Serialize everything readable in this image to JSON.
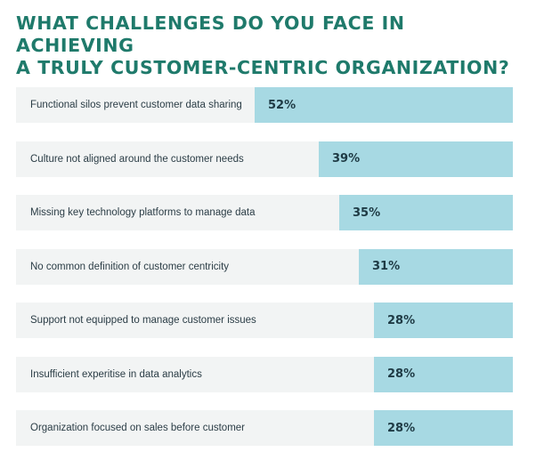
{
  "title_lines": [
    "WHAT CHALLENGES DO YOU FACE IN ACHIEVING",
    "A TRULY CUSTOMER-CENTRIC ORGANIZATION?"
  ],
  "colors": {
    "title": "#1f7a6b",
    "bar": "#a7d9e3",
    "row_background": "#f2f4f4",
    "text": "#2b3d46"
  },
  "chart_data": {
    "type": "bar",
    "orientation": "horizontal",
    "title": "WHAT CHALLENGES DO YOU FACE IN ACHIEVING A TRULY CUSTOMER-CENTRIC ORGANIZATION?",
    "categories": [
      "Functional silos prevent customer data sharing",
      "Culture not aligned around the customer needs",
      "Missing key technology platforms to manage data",
      "No common definition of customer centricity",
      "Support not equipped to manage customer issues",
      "Insufficient experitise in data analytics",
      "Organization focused on sales before customer"
    ],
    "values": [
      52,
      39,
      35,
      31,
      28,
      28,
      28
    ],
    "value_labels": [
      "52%",
      "39%",
      "35%",
      "31%",
      "28%",
      "28%",
      "28%"
    ],
    "xlim": [
      0,
      100
    ],
    "bar_alignment": "right",
    "grid": false,
    "legend": "none"
  }
}
